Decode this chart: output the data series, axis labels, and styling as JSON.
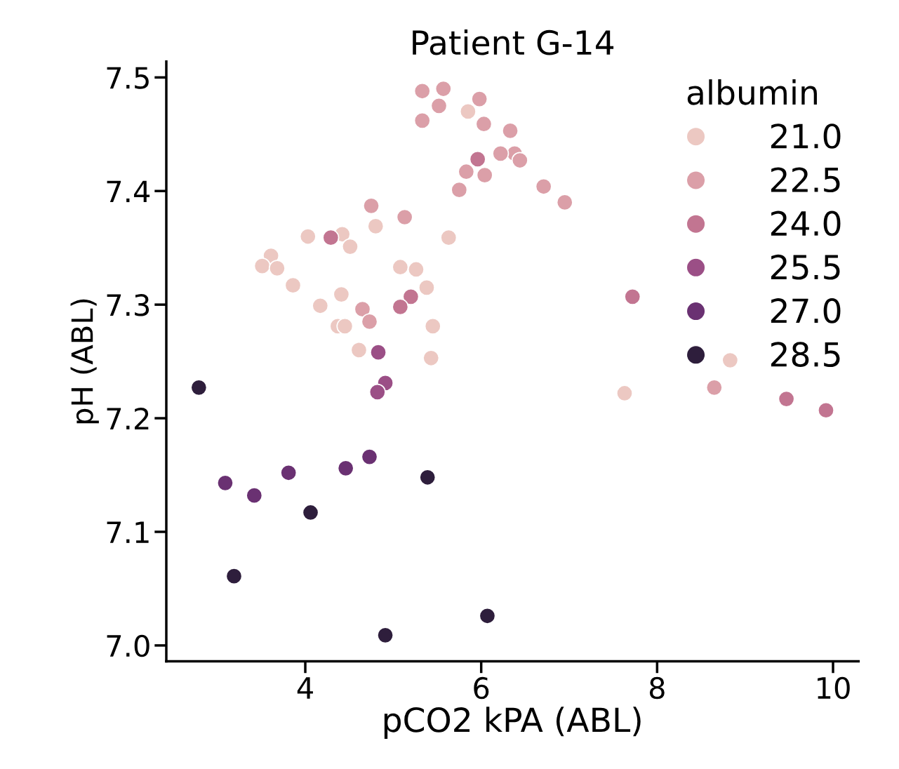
{
  "chart_data": {
    "type": "scatter",
    "title": "Patient G-14",
    "xlabel": "pCO2 kPA (ABL)",
    "ylabel": "pH (ABL)",
    "legend_title": "albumin",
    "legend": "top right",
    "marker": "circle",
    "grid": false,
    "xlim": [
      2.42,
      10.29
    ],
    "xticks": [
      4,
      6,
      8,
      10
    ],
    "ylim": [
      6.986,
      7.514
    ],
    "yticks": [
      {
        "value": 7.0,
        "label": "7.0"
      },
      7.1,
      7.2,
      7.3,
      7.4,
      7.5
    ],
    "series": [
      {
        "name": "21.0",
        "color": "#ecc8c2",
        "x": [
          5.85,
          4.8,
          4.03,
          4.42,
          4.51,
          5.63,
          3.61,
          3.51,
          3.61,
          3.68,
          3.86,
          5.08,
          5.26,
          5.38,
          4.17,
          4.41,
          4.37,
          4.45,
          4.61,
          5.45,
          5.43,
          7.63,
          8.83
        ],
        "values": [
          7.47,
          7.369,
          7.36,
          7.362,
          7.351,
          7.359,
          7.343,
          7.334,
          null,
          7.332,
          7.317,
          7.333,
          7.331,
          7.315,
          7.299,
          7.309,
          7.281,
          7.281,
          7.26,
          7.281,
          7.253,
          7.222,
          7.251
        ]
      },
      {
        "name": "22.5",
        "color": "#db9fa8",
        "x": [
          5.33,
          5.57,
          5.52,
          5.33,
          5.98,
          6.03,
          6.33,
          6.38,
          6.22,
          6.44,
          5.83,
          6.04,
          5.75,
          6.71,
          6.95,
          4.75,
          5.13,
          4.65,
          4.73,
          8.65
        ],
        "values": [
          7.488,
          7.49,
          7.475,
          7.462,
          7.481,
          7.459,
          7.453,
          7.433,
          7.433,
          7.427,
          7.417,
          7.414,
          7.401,
          7.404,
          7.39,
          7.387,
          7.377,
          7.296,
          7.285,
          7.227
        ]
      },
      {
        "name": "24.0",
        "color": "#c27591",
        "x": [
          5.96,
          4.29,
          5.2,
          5.08,
          7.72,
          9.47,
          9.92
        ],
        "values": [
          7.428,
          7.359,
          7.307,
          7.298,
          7.307,
          7.217,
          7.207
        ]
      },
      {
        "name": "25.5",
        "color": "#9b4f86",
        "x": [
          4.83,
          4.91,
          4.82
        ],
        "values": [
          7.258,
          7.231,
          7.223
        ]
      },
      {
        "name": "27.0",
        "color": "#6a3172",
        "x": [
          3.09,
          3.42,
          3.81,
          4.46,
          4.73
        ],
        "values": [
          7.143,
          7.132,
          7.152,
          7.156,
          7.166
        ]
      },
      {
        "name": "28.5",
        "color": "#2e1e3c",
        "x": [
          2.79,
          5.39,
          4.06,
          3.19,
          4.91,
          6.07
        ],
        "values": [
          7.227,
          7.148,
          7.117,
          7.061,
          7.009,
          7.026
        ]
      }
    ]
  }
}
